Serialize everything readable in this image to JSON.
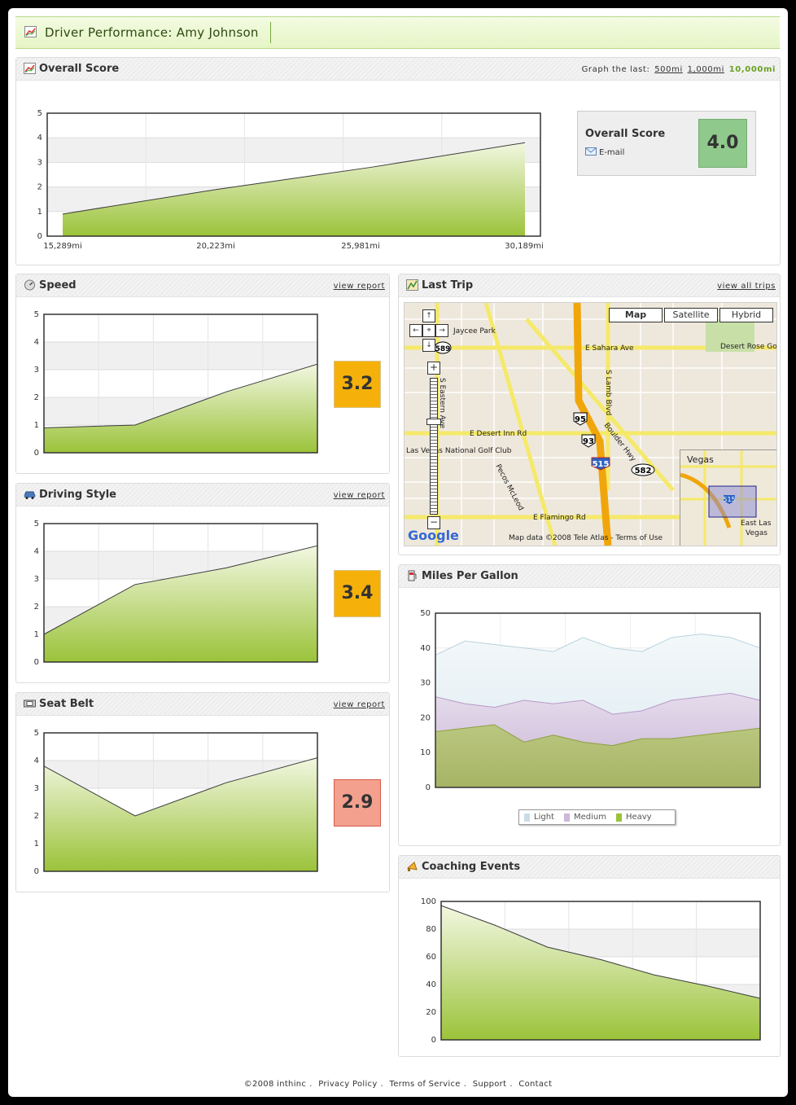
{
  "header": {
    "title": "Driver Performance: Amy Johnson"
  },
  "overall": {
    "title": "Overall Score",
    "graph_last_label": "Graph the last:",
    "range_options": [
      "500mi",
      "1,000mi",
      "10,000mi"
    ],
    "active_range": "10,000mi",
    "score_label": "Overall Score",
    "email_label": "E-mail",
    "score": "4.0",
    "score_color": "#8fc98b"
  },
  "speed": {
    "title": "Speed",
    "link": "view report",
    "score": "3.2",
    "score_color": "#f5b10a"
  },
  "driving_style": {
    "title": "Driving Style",
    "link": "view report",
    "score": "3.4",
    "score_color": "#f5b10a"
  },
  "seat_belt": {
    "title": "Seat Belt",
    "link": "view report",
    "score": "2.9",
    "score_color": "#f4a08e"
  },
  "last_trip": {
    "title": "Last Trip",
    "link": "view all trips",
    "map_types": [
      "Map",
      "Satellite",
      "Hybrid"
    ],
    "selected_map_type": "Map",
    "map_labels": [
      "E Sahara Ave",
      "E Desert Inn Rd",
      "E Flamingo Rd",
      "Boulder Hwy",
      "S Lamb Blvd",
      "S Eastern Ave",
      "Pecos McLeod",
      "Desert Rose Golf Course",
      "Las Vegas National Golf Club",
      "Vegas",
      "East Las Vegas",
      "Jaycee Park"
    ],
    "route_shields": [
      "95",
      "93",
      "515",
      "582",
      "589"
    ],
    "attribution": "Map data ©2008 Tele Atlas - Terms of Use",
    "logo": "Google"
  },
  "mpg": {
    "title": "Miles Per Gallon",
    "legend": [
      "Light",
      "Medium",
      "Heavy"
    ]
  },
  "coaching": {
    "title": "Coaching Events"
  },
  "footer": {
    "items": [
      "©2008 inthinc",
      "Privacy Policy",
      "Terms of Service",
      "Support",
      "Contact"
    ]
  },
  "chart_data": [
    {
      "id": "overall",
      "type": "area",
      "x_tick_labels": [
        "15,289mi",
        "20,223mi",
        "25,981mi",
        "30,189mi"
      ],
      "x": [
        0,
        1,
        2,
        3
      ],
      "values": [
        0.9,
        1.9,
        2.8,
        3.8
      ],
      "ylim": [
        0,
        5
      ],
      "yticks": [
        0,
        1,
        2,
        3,
        4,
        5
      ]
    },
    {
      "id": "speed",
      "type": "area",
      "values": [
        0.9,
        1.0,
        2.2,
        3.2
      ],
      "ylim": [
        0,
        5
      ],
      "yticks": [
        0,
        1,
        2,
        3,
        4,
        5
      ]
    },
    {
      "id": "driving_style",
      "type": "area",
      "values": [
        1.0,
        2.8,
        3.4,
        4.2
      ],
      "ylim": [
        0,
        5
      ],
      "yticks": [
        0,
        1,
        2,
        3,
        4,
        5
      ]
    },
    {
      "id": "seat_belt",
      "type": "area",
      "values": [
        3.8,
        2.0,
        3.2,
        4.1
      ],
      "ylim": [
        0,
        5
      ],
      "yticks": [
        0,
        1,
        2,
        3,
        4,
        5
      ]
    },
    {
      "id": "mpg",
      "type": "area",
      "stacked_bands": true,
      "ylim": [
        0,
        50
      ],
      "yticks": [
        0,
        10,
        20,
        30,
        40,
        50
      ],
      "series": [
        {
          "name": "Light",
          "color": "#dbe9ef",
          "values": [
            38,
            42,
            41,
            40,
            39,
            43,
            40,
            39,
            43,
            44,
            43,
            40
          ]
        },
        {
          "name": "Medium",
          "color": "#cdb8d8",
          "values": [
            26,
            24,
            23,
            25,
            24,
            25,
            21,
            22,
            25,
            26,
            27,
            25
          ]
        },
        {
          "name": "Heavy",
          "color": "#a8b968",
          "values": [
            16,
            17,
            18,
            13,
            15,
            13,
            12,
            14,
            14,
            15,
            16,
            17
          ]
        }
      ]
    },
    {
      "id": "coaching",
      "type": "area",
      "values": [
        97,
        83,
        67,
        58,
        47,
        39,
        30
      ],
      "ylim": [
        0,
        100
      ],
      "yticks": [
        0,
        20,
        40,
        60,
        80,
        100
      ]
    }
  ]
}
